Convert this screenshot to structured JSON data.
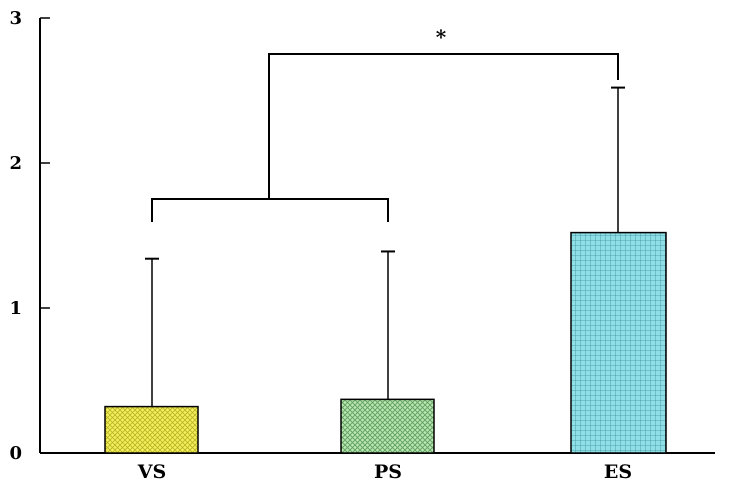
{
  "chart_data": {
    "type": "bar",
    "categories": [
      "VS",
      "PS",
      "ES"
    ],
    "values": [
      0.32,
      0.37,
      1.52
    ],
    "error_upper": [
      1.34,
      1.39,
      2.52
    ],
    "ylim": [
      0,
      3
    ],
    "yticks": [
      "0",
      "1",
      "2",
      "3"
    ],
    "title": "",
    "xlabel": "",
    "ylabel": "",
    "bar_colors": [
      "#f3f05a",
      "#b9e6b2",
      "#8fe0e6"
    ],
    "pattern_colors": [
      "#b8b228",
      "#5f9f5f",
      "#3d8f9a"
    ],
    "grid": false,
    "legend": "none",
    "significance": {
      "label": "*",
      "between": "VS+PS vs ES"
    }
  }
}
